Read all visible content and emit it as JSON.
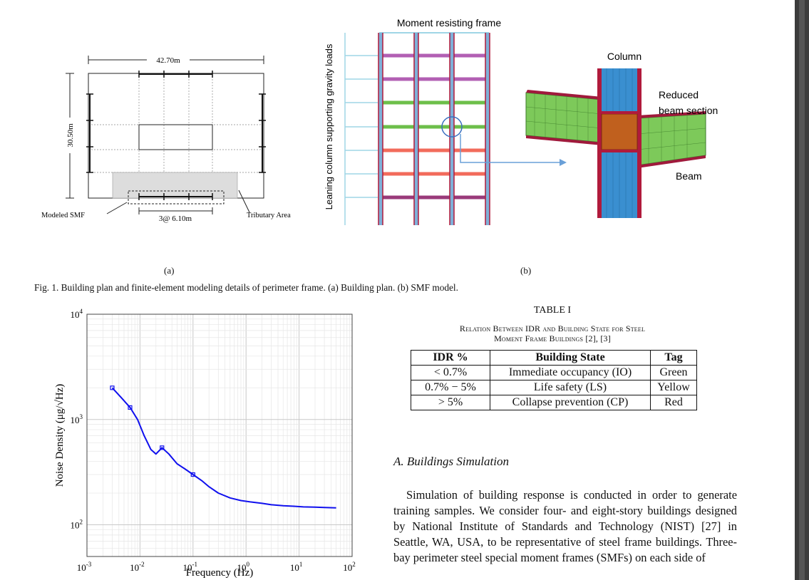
{
  "figure1": {
    "panel_a": {
      "dim_width": "42.70m",
      "dim_height": "30.50m",
      "dim_bay": "3@ 6.10m",
      "label_smf": "Modeled SMF",
      "label_tributary": "Tributary Area",
      "sublabel": "(a)"
    },
    "panel_b": {
      "label_frame": "Moment resisting frame",
      "label_leaning": "Leaning column supporting gravity loads",
      "label_column": "Column",
      "label_rbs_1": "Reduced",
      "label_rbs_2": "beam section",
      "label_beam": "Beam",
      "sublabel": "(b)",
      "colors": {
        "column": "#b01a3c",
        "steel": "#3a8fd0",
        "green": "#6dbf4a",
        "red": "#f26b5b",
        "purple": "#9a4fa6"
      }
    },
    "caption": "Fig. 1.   Building plan and finite-element modeling details of perimeter frame. (a) Building plan. (b) SMF model."
  },
  "chart_data": {
    "type": "line",
    "xscale": "log",
    "yscale": "log",
    "xlim": [
      0.001,
      100
    ],
    "ylim": [
      50,
      10000
    ],
    "xlabel": "Frequency (Hz)",
    "ylabel": "Noise Density (μg/√Hz)",
    "x_ticks": [
      {
        "base": "10",
        "exp": "-3"
      },
      {
        "base": "10",
        "exp": "-2"
      },
      {
        "base": "10",
        "exp": "-1"
      },
      {
        "base": "10",
        "exp": "0"
      },
      {
        "base": "10",
        "exp": "1"
      },
      {
        "base": "10",
        "exp": "2"
      }
    ],
    "y_ticks": [
      {
        "base": "10",
        "exp": "2"
      },
      {
        "base": "10",
        "exp": "3"
      },
      {
        "base": "10",
        "exp": "4"
      }
    ],
    "grid": true,
    "color": "#1010ee",
    "series": [
      {
        "x": [
          0.003,
          0.0045,
          0.0065,
          0.009,
          0.012,
          0.016,
          0.02,
          0.026,
          0.035,
          0.05,
          0.07,
          0.1,
          0.15,
          0.2,
          0.3,
          0.5,
          0.8,
          1.2,
          2,
          3,
          5,
          8,
          12,
          20,
          30,
          50
        ],
        "y": [
          2000,
          1600,
          1300,
          1000,
          700,
          520,
          470,
          540,
          470,
          380,
          340,
          300,
          260,
          230,
          200,
          180,
          170,
          165,
          160,
          155,
          152,
          150,
          148,
          147,
          146,
          145
        ]
      }
    ]
  },
  "table1": {
    "label": "TABLE I",
    "title_line1": "Relation Between IDR and Building State for Steel",
    "title_line2": "Moment Frame Buildings [2], [3]",
    "headers": [
      "IDR %",
      "Building State",
      "Tag"
    ],
    "rows": [
      [
        "< 0.7%",
        "Immediate occupancy (IO)",
        "Green"
      ],
      [
        "0.7% − 5%",
        "Life safety (LS)",
        "Yellow"
      ],
      [
        "> 5%",
        "Collapse prevention (CP)",
        "Red"
      ]
    ]
  },
  "section": {
    "heading": "A. Buildings Simulation",
    "paragraph": "Simulation of building response is conducted in order to generate training samples. We consider four- and eight-story buildings designed by National Institute of Standards and Technology (NIST) [27] in Seattle, WA, USA, to be representative of steel frame buildings. Three-bay perimeter steel special moment frames (SMFs) on each side of"
  }
}
